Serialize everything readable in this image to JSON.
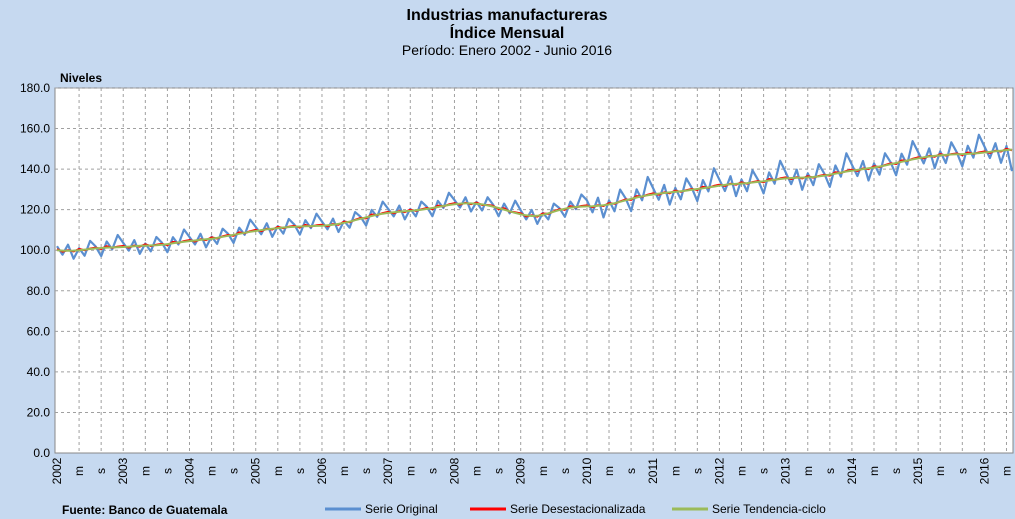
{
  "chart_data": {
    "type": "line",
    "title": "Industrias manufactureras",
    "subtitle": "Índice Mensual",
    "period": "Período: Enero 2002 - Junio 2016",
    "y_label": "Niveles",
    "source": "Fuente: Banco de Guatemala",
    "grid": true,
    "legend": "bottom",
    "ylim": [
      0,
      180
    ],
    "yticks": [
      {
        "value": 0,
        "label": "0.0"
      },
      {
        "value": 20,
        "label": "20.0"
      },
      {
        "value": 40,
        "label": "40.0"
      },
      {
        "value": 60,
        "label": "60.0"
      },
      {
        "value": 80,
        "label": "80.0"
      },
      {
        "value": 100,
        "label": "100.0"
      },
      {
        "value": 120,
        "label": "120.0"
      },
      {
        "value": 140,
        "label": "140.0"
      },
      {
        "value": 160,
        "label": "160.0"
      },
      {
        "value": 180,
        "label": "180.0"
      }
    ],
    "categories": [
      "2002",
      null,
      null,
      null,
      "m",
      null,
      null,
      null,
      "s",
      null,
      null,
      null,
      "2003",
      null,
      null,
      null,
      "m",
      null,
      null,
      null,
      "s",
      null,
      null,
      null,
      "2004",
      null,
      null,
      null,
      "m",
      null,
      null,
      null,
      "s",
      null,
      null,
      null,
      "2005",
      null,
      null,
      null,
      "m",
      null,
      null,
      null,
      "s",
      null,
      null,
      null,
      "2006",
      null,
      null,
      null,
      "m",
      null,
      null,
      null,
      "s",
      null,
      null,
      null,
      "2007",
      null,
      null,
      null,
      "m",
      null,
      null,
      null,
      "s",
      null,
      null,
      null,
      "2008",
      null,
      null,
      null,
      "m",
      null,
      null,
      null,
      "s",
      null,
      null,
      null,
      "2009",
      null,
      null,
      null,
      "m",
      null,
      null,
      null,
      "s",
      null,
      null,
      null,
      "2010",
      null,
      null,
      null,
      "m",
      null,
      null,
      null,
      "s",
      null,
      null,
      null,
      "2011",
      null,
      null,
      null,
      "m",
      null,
      null,
      null,
      "s",
      null,
      null,
      null,
      "2012",
      null,
      null,
      null,
      "m",
      null,
      null,
      null,
      "s",
      null,
      null,
      null,
      "2013",
      null,
      null,
      null,
      "m",
      null,
      null,
      null,
      "s",
      null,
      null,
      null,
      "2014",
      null,
      null,
      null,
      "m",
      null,
      null,
      null,
      "s",
      null,
      null,
      null,
      "2015",
      null,
      null,
      null,
      "m",
      null,
      null,
      null,
      "s",
      null,
      null,
      null,
      "2016",
      null,
      null,
      null,
      "m",
      null
    ],
    "series": [
      {
        "name": "Serie Original",
        "color": "#5b8fd0",
        "values": [
          102.0,
          97.8,
          102.7,
          95.8,
          101.0,
          97.3,
          104.6,
          101.9,
          97.1,
          104.3,
          100.4,
          107.5,
          103.6,
          99.8,
          105.0,
          98.2,
          103.3,
          99.4,
          106.5,
          103.7,
          99.0,
          106.4,
          102.8,
          110.2,
          106.5,
          102.8,
          108.1,
          101.4,
          106.7,
          103.1,
          110.6,
          108.1,
          103.6,
          111.1,
          107.6,
          115.1,
          111.5,
          107.9,
          113.3,
          106.6,
          111.9,
          108.2,
          115.4,
          112.6,
          107.7,
          114.8,
          110.9,
          118.0,
          114.1,
          110.3,
          115.6,
          109.0,
          114.5,
          111.1,
          118.8,
          116.5,
          112.2,
          119.9,
          116.5,
          124.0,
          120.4,
          116.7,
          122.0,
          115.2,
          120.4,
          116.7,
          124.0,
          121.4,
          116.8,
          124.3,
          120.8,
          128.3,
          124.7,
          121.0,
          126.1,
          119.1,
          123.9,
          119.6,
          126.1,
          122.5,
          116.8,
          123.0,
          118.2,
          124.4,
          119.7,
          115.2,
          119.9,
          113.0,
          118.5,
          115.2,
          123.0,
          120.8,
          116.5,
          124.0,
          120.3,
          127.5,
          124.6,
          118.7,
          125.9,
          116.2,
          124.6,
          119.2,
          129.9,
          125.6,
          119.3,
          130.0,
          124.6,
          136.1,
          130.5,
          124.9,
          132.2,
          122.5,
          130.8,
          125.1,
          135.4,
          130.8,
          124.2,
          134.6,
          129.0,
          140.4,
          134.8,
          129.2,
          136.5,
          126.7,
          134.9,
          129.1,
          139.4,
          134.7,
          128.0,
          138.4,
          132.8,
          144.1,
          138.4,
          132.6,
          139.7,
          129.8,
          137.9,
          132.1,
          142.4,
          137.8,
          131.3,
          141.8,
          136.3,
          147.8,
          142.2,
          136.6,
          144.0,
          134.4,
          142.8,
          137.3,
          147.8,
          143.4,
          137.0,
          147.6,
          142.2,
          153.8,
          148.3,
          142.8,
          150.2,
          140.5,
          148.8,
          143.0,
          153.2,
          148.3,
          141.4,
          151.5,
          145.7,
          156.9,
          151.2,
          145.5,
          152.8,
          143.1,
          151.4,
          139.0
        ]
      },
      {
        "name": "Serie Desestacionalizada",
        "color": "#ff0000",
        "values": [
          100.5,
          99.3,
          100.0,
          99.4,
          100.6,
          100.0,
          100.8,
          101.3,
          100.6,
          102.0,
          101.2,
          101.8,
          102.1,
          101.3,
          102.3,
          101.8,
          102.9,
          102.1,
          102.7,
          103.1,
          102.5,
          104.1,
          103.6,
          104.5,
          105.0,
          104.3,
          105.4,
          105.0,
          106.3,
          105.8,
          106.8,
          107.5,
          107.1,
          108.8,
          108.4,
          109.4,
          110.0,
          109.4,
          110.6,
          110.2,
          111.5,
          110.9,
          111.6,
          112.0,
          111.2,
          112.5,
          111.7,
          112.3,
          112.6,
          111.8,
          112.9,
          112.6,
          114.1,
          113.8,
          115.0,
          115.9,
          115.7,
          117.6,
          117.3,
          118.3,
          118.9,
          118.2,
          119.3,
          118.8,
          120.0,
          119.4,
          120.2,
          120.8,
          120.3,
          122.0,
          121.6,
          122.6,
          123.2,
          122.5,
          123.4,
          122.7,
          123.5,
          122.3,
          122.3,
          121.9,
          120.3,
          120.7,
          119.0,
          118.7,
          118.2,
          116.7,
          117.2,
          116.6,
          118.1,
          117.9,
          119.2,
          120.2,
          120.0,
          121.7,
          121.1,
          121.8,
          122.1,
          121.2,
          122.2,
          121.8,
          123.2,
          122.9,
          124.1,
          125.0,
          124.8,
          126.7,
          126.4,
          127.4,
          128.0,
          127.4,
          128.5,
          128.1,
          129.4,
          128.8,
          129.6,
          130.2,
          129.7,
          131.3,
          130.8,
          131.7,
          132.3,
          131.7,
          132.8,
          132.3,
          133.5,
          132.8,
          133.6,
          134.1,
          133.5,
          135.1,
          134.6,
          135.4,
          135.9,
          135.1,
          136.0,
          135.4,
          136.5,
          135.8,
          136.6,
          137.2,
          136.8,
          138.5,
          138.1,
          139.1,
          139.7,
          139.1,
          140.3,
          140.0,
          141.4,
          141.0,
          142.0,
          142.8,
          142.5,
          144.3,
          144.0,
          145.1,
          145.8,
          145.3,
          146.5,
          146.1,
          147.4,
          146.7,
          147.4,
          147.7,
          146.9,
          148.2,
          147.5,
          148.2,
          148.7,
          148.0,
          149.1,
          148.7,
          150.0,
          149.3
        ]
      },
      {
        "name": "Serie Tendencia-ciclo",
        "color": "#9bbb59",
        "values": [
          100.0,
          99.8,
          99.7,
          99.8,
          100.0,
          100.3,
          100.6,
          100.9,
          101.1,
          101.3,
          101.4,
          101.5,
          101.6,
          101.8,
          102.0,
          102.2,
          102.3,
          102.4,
          102.5,
          102.7,
          103.0,
          103.4,
          103.8,
          104.2,
          104.5,
          104.8,
          105.1,
          105.4,
          105.7,
          106.1,
          106.6,
          107.1,
          107.6,
          108.1,
          108.6,
          109.1,
          109.5,
          109.9,
          110.3,
          110.6,
          110.9,
          111.2,
          111.4,
          111.6,
          111.7,
          111.8,
          111.9,
          112.0,
          112.1,
          112.3,
          112.6,
          113.0,
          113.5,
          114.1,
          114.8,
          115.5,
          116.2,
          116.9,
          117.5,
          118.0,
          118.4,
          118.7,
          119.0,
          119.2,
          119.4,
          119.7,
          120.0,
          120.4,
          120.8,
          121.3,
          121.8,
          122.3,
          122.7,
          123.0,
          123.1,
          123.1,
          122.9,
          122.6,
          122.1,
          121.5,
          120.8,
          120.0,
          119.2,
          118.4,
          117.7,
          117.2,
          116.9,
          117.0,
          117.5,
          118.2,
          119.0,
          119.8,
          120.5,
          121.0,
          121.3,
          121.5,
          121.6,
          121.7,
          121.9,
          122.2,
          122.6,
          123.2,
          123.9,
          124.6,
          125.3,
          126.0,
          126.6,
          127.1,
          127.5,
          127.9,
          128.2,
          128.5,
          128.8,
          129.1,
          129.4,
          129.8,
          130.2,
          130.6,
          131.0,
          131.4,
          131.8,
          132.2,
          132.5,
          132.7,
          132.9,
          133.1,
          133.4,
          133.7,
          134.0,
          134.4,
          134.8,
          135.1,
          135.4,
          135.6,
          135.7,
          135.8,
          135.9,
          136.1,
          136.4,
          136.8,
          137.3,
          137.8,
          138.3,
          138.8,
          139.2,
          139.6,
          140.0,
          140.4,
          140.8,
          141.3,
          141.8,
          142.4,
          143.0,
          143.6,
          144.2,
          144.8,
          145.3,
          145.8,
          146.2,
          146.5,
          146.8,
          147.0,
          147.2,
          147.3,
          147.4,
          147.5,
          147.7,
          147.9,
          148.2,
          148.5,
          148.8,
          149.1,
          149.4,
          149.6
        ]
      }
    ]
  }
}
